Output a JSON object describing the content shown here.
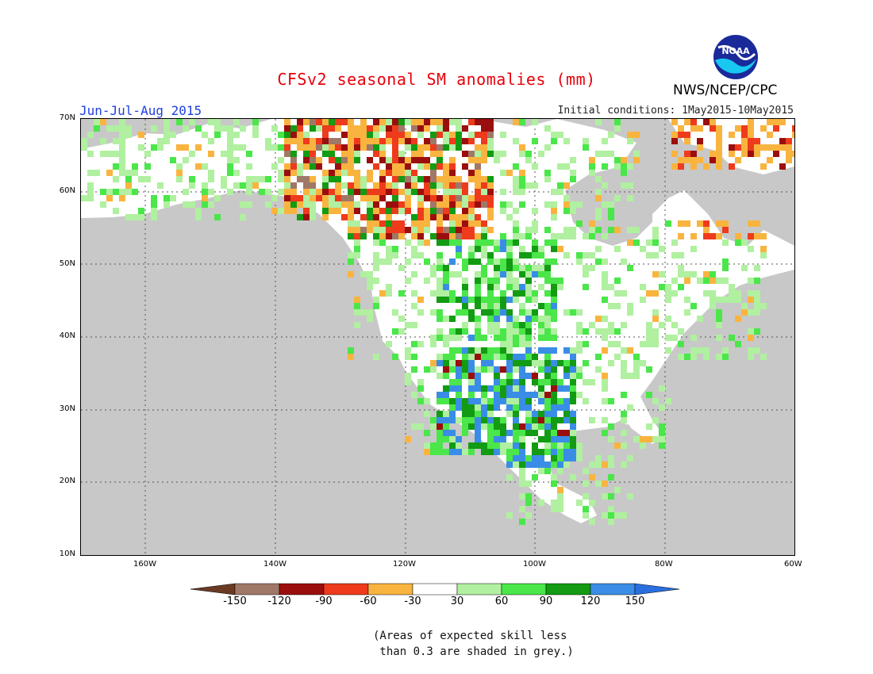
{
  "title": "CFSv2 seasonal SM anomalies (mm)",
  "period": "Jun-Jul-Aug 2015",
  "initial_conditions": "Initial conditions: 1May2015-10May2015",
  "agency": "NWS/NCEP/CPC",
  "logo_text": "NOAA",
  "map": {
    "lat_labels": [
      "70N",
      "60N",
      "50N",
      "40N",
      "30N",
      "20N",
      "10N"
    ],
    "lon_labels": [
      "160W",
      "140W",
      "120W",
      "100W",
      "80W",
      "60W"
    ],
    "extent": {
      "lon": [
        -170,
        -60
      ],
      "lat": [
        10,
        70
      ]
    },
    "grid": "dotted"
  },
  "colorbar": {
    "ticks": [
      "-150",
      "-120",
      "-90",
      "-60",
      "-30",
      "30",
      "60",
      "90",
      "120",
      "150"
    ],
    "colors": [
      "#6b3a24",
      "#a07868",
      "#9b0e0e",
      "#ee3b1c",
      "#f9b43f",
      "#ffffff",
      "#b0f0a0",
      "#4ae64a",
      "#139b13",
      "#3a8de6",
      "#2a6fe0"
    ]
  },
  "note": "(Areas of expected skill less\n than 0.3 are shaded in grey.)",
  "colors": {
    "land_nodata": "#c8c8c8",
    "title": "#e8000b",
    "period": "#1f3fe0"
  }
}
